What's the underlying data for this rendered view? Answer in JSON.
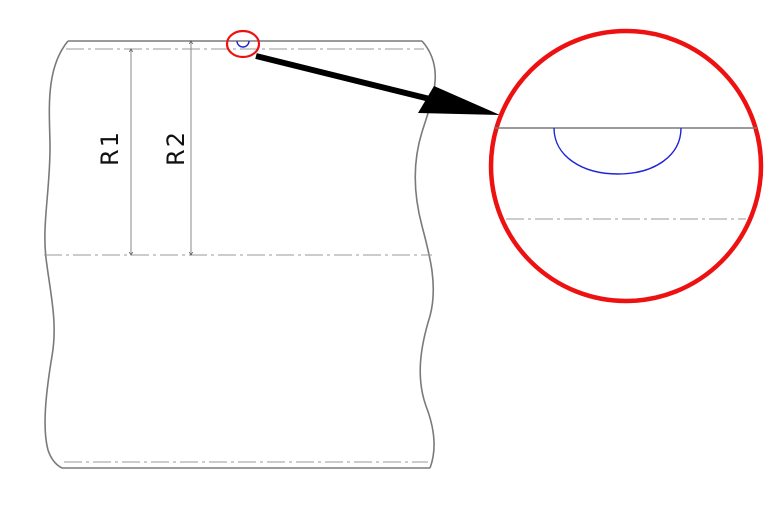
{
  "labels": {
    "r1": "R1",
    "r2": "R2"
  },
  "colors": {
    "outline": "#7a7a7a",
    "groove": "#1f24d6",
    "callout": "#ee1111",
    "arrow": "#000000"
  }
}
